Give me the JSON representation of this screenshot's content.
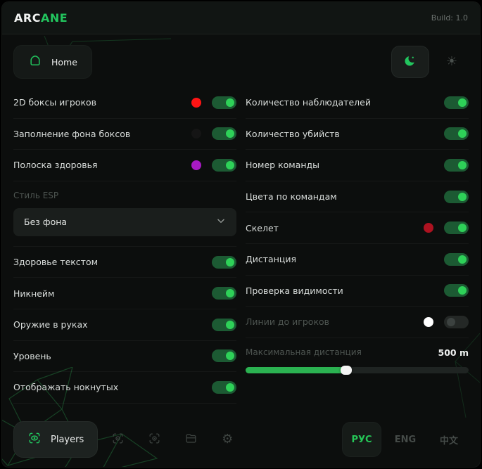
{
  "topbar": {
    "logo_prefix": "ARC",
    "logo_suffix": "ANE",
    "build": "Build: 1.0"
  },
  "nav": {
    "home_label": "Home"
  },
  "left_top": [
    {
      "label": "2D боксы игроков",
      "swatch": "#ff1414",
      "on": true
    },
    {
      "label": "Заполнение фона боксов",
      "swatch": "#151515",
      "on": true
    },
    {
      "label": "Полоска здоровья",
      "swatch": "#a81ac4",
      "on": true
    }
  ],
  "esp_style": {
    "label": "Стиль ESP",
    "value": "Без фона"
  },
  "left_bottom": [
    {
      "label": "Здоровье текстом",
      "on": true
    },
    {
      "label": "Никнейм",
      "on": true
    },
    {
      "label": "Оружие в руках",
      "on": true
    },
    {
      "label": "Уровень",
      "on": true
    },
    {
      "label": "Отображать нокнутых",
      "on": true
    }
  ],
  "right_rows": [
    {
      "label": "Количество наблюдателей",
      "on": true
    },
    {
      "label": "Количество убийств",
      "on": true
    },
    {
      "label": "Номер команды",
      "on": true
    },
    {
      "label": "Цвета по командам",
      "on": true
    },
    {
      "label": "Скелет",
      "swatch": "#ad1220",
      "on": true
    },
    {
      "label": "Дистанция",
      "on": true
    },
    {
      "label": "Проверка видимости",
      "on": true
    },
    {
      "label": "Линии до игроков",
      "swatch": "#ffffff",
      "on": false,
      "dim": true
    }
  ],
  "slider": {
    "label": "Максимальная дистанция",
    "value": "500 m",
    "percent": 45
  },
  "footer": {
    "players_label": "Players"
  },
  "languages": [
    {
      "label": "РУС",
      "active": true
    },
    {
      "label": "ENG",
      "active": false
    },
    {
      "label": "中文",
      "active": false
    }
  ],
  "icons": {
    "gear": "⚙",
    "sun": "☀"
  },
  "colors": {
    "accent": "#22c55e",
    "toggle_on_track": "#1c5a33",
    "toggle_knob": "#2ed158",
    "slider_fill": "#2bb251"
  }
}
